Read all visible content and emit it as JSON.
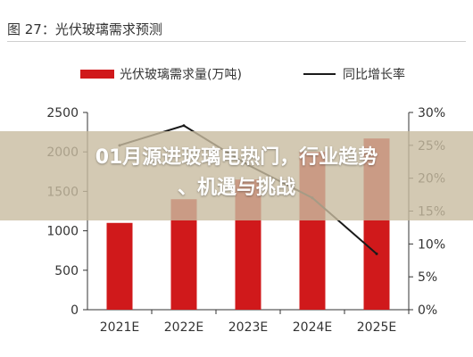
{
  "figure": {
    "title": "图 27：光伏玻璃需求预测"
  },
  "banner": {
    "line1": "01月源进玻璃电热门，行业趋势",
    "line2": "、机遇与挑战"
  },
  "colors": {
    "bar": "#d0191b",
    "line": "#1a1a1a",
    "axis": "#333333"
  },
  "chart_data": {
    "type": "bar",
    "categories": [
      "2021E",
      "2022E",
      "2023E",
      "2024E",
      "2025E"
    ],
    "series": [
      {
        "name": "光伏玻璃需求量(万吨)",
        "type": "bar",
        "axis": "left",
        "values": [
          1100,
          1400,
          1650,
          2000,
          2170
        ]
      },
      {
        "name": "同比增长率",
        "type": "line",
        "axis": "right",
        "values": [
          25,
          28,
          22,
          17,
          8.5
        ]
      }
    ],
    "y_left": {
      "min": 0,
      "max": 2500,
      "ticks": [
        "0",
        "500",
        "1000",
        "1500",
        "2000",
        "2500"
      ]
    },
    "y_right": {
      "min": 0,
      "max": 30,
      "ticks": [
        "0%",
        "5%",
        "10%",
        "15%",
        "20%",
        "25%",
        "30%"
      ]
    },
    "legend": "top-center",
    "grid": false
  }
}
